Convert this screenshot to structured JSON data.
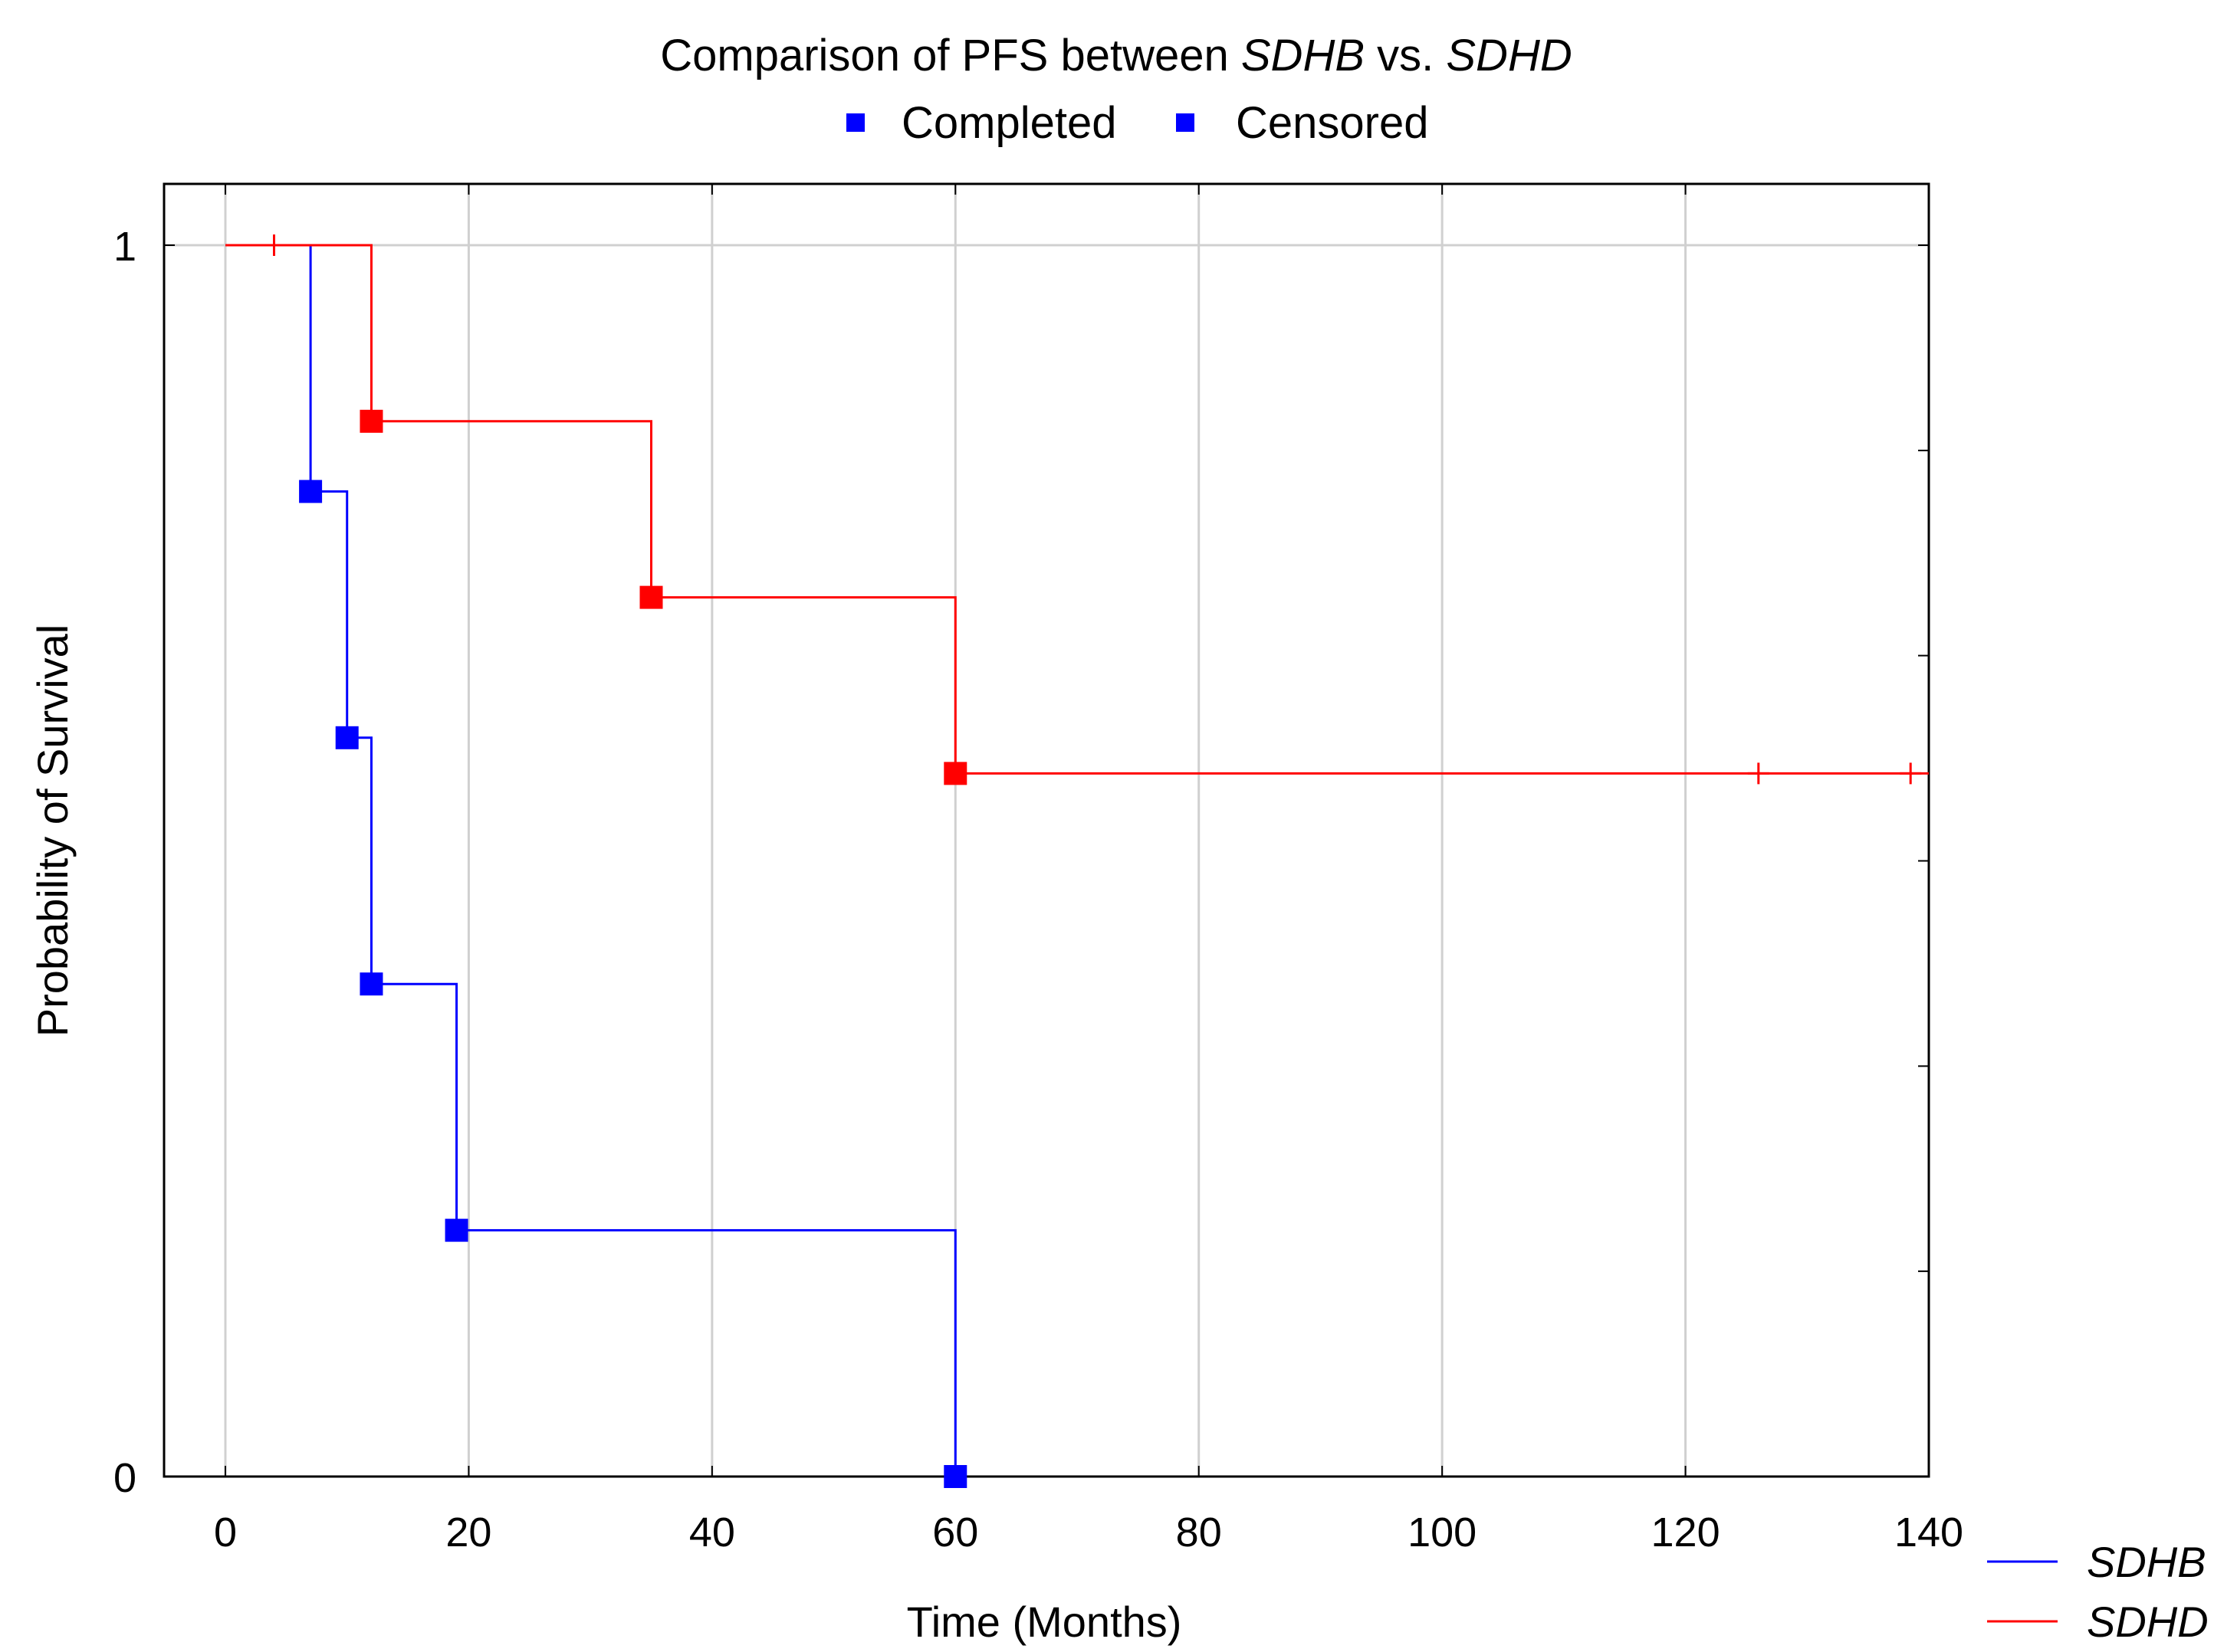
{
  "chart_data": {
    "type": "line",
    "title_prefix": "Comparison of PFS between ",
    "title_gene_1": "SDHB",
    "title_mid": " vs. ",
    "title_gene_2": "SDHD",
    "xlabel": "Time (Months)",
    "ylabel": "Probability of Survival",
    "xlim": [
      -5,
      140
    ],
    "ylim": [
      0,
      1.05
    ],
    "xticks": [
      0,
      20,
      40,
      60,
      80,
      100,
      120,
      140
    ],
    "yticks": [
      0,
      1
    ],
    "y_minor_ticks": [
      0.1667,
      0.3333,
      0.5,
      0.6667,
      0.8333
    ],
    "grid": "vertical and y=1",
    "marker_legend": [
      {
        "label": "Completed",
        "color": "#0000ff"
      },
      {
        "label": "Censored",
        "color": "#0000ff"
      }
    ],
    "legend_position": "bottom-right",
    "series": [
      {
        "name": "SDHB",
        "color": "#0000ff",
        "steps": [
          [
            0,
            1.0
          ],
          [
            7,
            0.8
          ],
          [
            10,
            0.6
          ],
          [
            12,
            0.4
          ],
          [
            19,
            0.2
          ],
          [
            60,
            0.0
          ]
        ],
        "events": [
          [
            7,
            0.8
          ],
          [
            10,
            0.6
          ],
          [
            12,
            0.4
          ],
          [
            19,
            0.2
          ],
          [
            60,
            0.0
          ]
        ],
        "censored": []
      },
      {
        "name": "SDHD",
        "color": "#ff0000",
        "start_x": 0,
        "steps": [
          [
            0,
            1.0
          ],
          [
            12,
            0.857
          ],
          [
            35,
            0.714
          ],
          [
            60,
            0.571
          ]
        ],
        "events": [
          [
            12,
            0.857
          ],
          [
            35,
            0.714
          ],
          [
            60,
            0.571
          ]
        ],
        "censored": [
          [
            4,
            1.0
          ],
          [
            126,
            0.571
          ],
          [
            138.5,
            0.571
          ]
        ],
        "end_x": 140
      }
    ]
  }
}
